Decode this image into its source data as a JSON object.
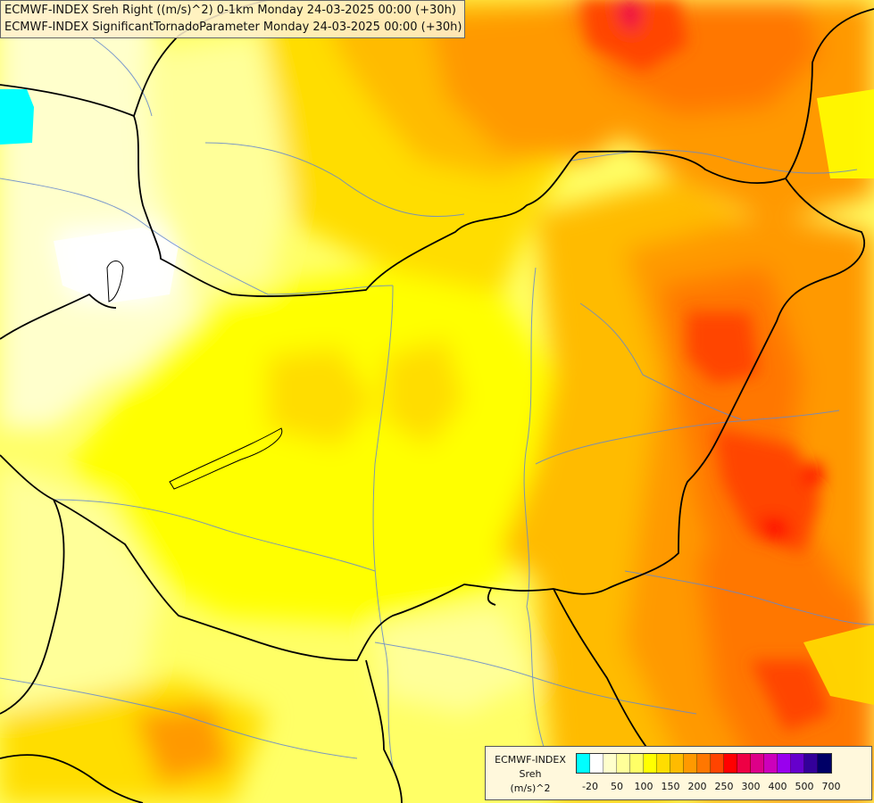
{
  "title": {
    "line1": "ECMWF-INDEX Sreh Right ((m/s)^2) 0-1km Monday 24-03-2025 00:00 (+30h)",
    "line2": "ECMWF-INDEX SignificantTornadoParameter Monday 24-03-2025 00:00 (+30h)"
  },
  "legend": {
    "line1": "ECMWF-INDEX",
    "line2": "Sreh",
    "line3": "(m/s)^2",
    "swatch_colors": [
      "#00ffff",
      "#ffffff",
      "#ffffcc",
      "#ffff99",
      "#ffff66",
      "#ffff00",
      "#ffdd00",
      "#ffbb00",
      "#ff9900",
      "#ff7700",
      "#ff4400",
      "#ff0000",
      "#ee0044",
      "#dd0088",
      "#cc00bb",
      "#9900ee",
      "#6600cc",
      "#330099",
      "#000066"
    ],
    "ticks": [
      {
        "label": "-20",
        "at": 1
      },
      {
        "label": "50",
        "at": 3
      },
      {
        "label": "100",
        "at": 5
      },
      {
        "label": "150",
        "at": 7
      },
      {
        "label": "200",
        "at": 9
      },
      {
        "label": "250",
        "at": 11
      },
      {
        "label": "300",
        "at": 13
      },
      {
        "label": "400",
        "at": 15
      },
      {
        "label": "500",
        "at": 17
      },
      {
        "label": "700",
        "at": 19
      }
    ]
  },
  "palette": {
    "background": "#ffff66",
    "cyan_patch": "#00ffff",
    "border_color": "#000000",
    "river_color": "#6688cc"
  }
}
